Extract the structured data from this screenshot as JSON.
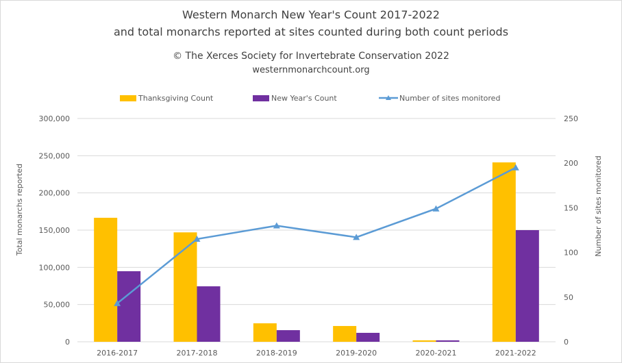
{
  "chart_data": {
    "type": "bar",
    "title": "Western Monarch New Year's Count 2017-2022",
    "subtitle": "and total monarchs reported at sites counted during both count periods",
    "credit": "© The Xerces Society for Invertebrate Conservation 2022",
    "website": "westernmonarchcount.org",
    "categories": [
      "2016-2017",
      "2017-2018",
      "2018-2019",
      "2019-2020",
      "2020-2021",
      "2021-2022"
    ],
    "series": [
      {
        "name": "Thanksgiving Count",
        "type": "bar",
        "axis": "left",
        "color": "#FFC000",
        "values": [
          166600,
          147000,
          24800,
          21200,
          1900,
          241000
        ]
      },
      {
        "name": "New Year's Count",
        "type": "bar",
        "axis": "left",
        "color": "#7030A0",
        "values": [
          94800,
          74500,
          15600,
          12000,
          1900,
          150000
        ]
      },
      {
        "name": "Number of sites monitored",
        "type": "line",
        "axis": "right",
        "color": "#5B9BD5",
        "marker": "triangle",
        "values": [
          43,
          115,
          130,
          117,
          149,
          195
        ]
      }
    ],
    "ylabel": "Total monarchs reported",
    "y2label": "Number  of sites monitored",
    "ylim": [
      0,
      300000
    ],
    "y2lim": [
      0,
      250
    ],
    "yticks": [
      "0",
      "50,000",
      "100,000",
      "150,000",
      "200,000",
      "250,000",
      "300,000"
    ],
    "y2ticks": [
      "0",
      "50",
      "100",
      "150",
      "200",
      "250"
    ],
    "grid": true,
    "legend": "top"
  }
}
